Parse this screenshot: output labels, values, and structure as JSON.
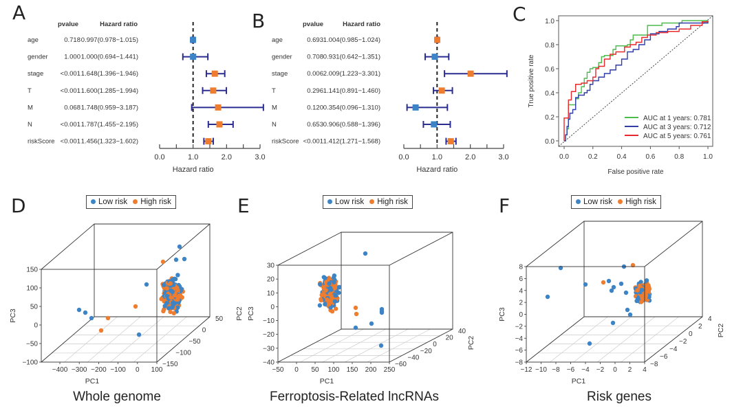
{
  "panels": {
    "A": {
      "letter": "A"
    },
    "B": {
      "letter": "B"
    },
    "C": {
      "letter": "C"
    },
    "D": {
      "letter": "D",
      "subtitle": "Whole genome"
    },
    "E": {
      "letter": "E",
      "subtitle": "Ferroptosis-Related lncRNAs"
    },
    "F": {
      "letter": "F",
      "subtitle": "Risk genes"
    }
  },
  "legend": {
    "low": "Low risk",
    "high": "High risk"
  },
  "colors": {
    "low": "#3c84c6",
    "high": "#ee7d2f",
    "ci": "#2a2d8f",
    "auc1": "#4cbb4c",
    "auc3": "#2e3ba8",
    "auc5": "#e8282a"
  },
  "chart_data": [
    {
      "id": "A",
      "type": "forest",
      "headers": {
        "pvalue": "pvalue",
        "hr": "Hazard ratio"
      },
      "xlabel": "Hazard ratio",
      "xlim": [
        0,
        3
      ],
      "xticks": [
        "0.0",
        "1.0",
        "2.0",
        "3.0"
      ],
      "reference_line": 1,
      "rows": [
        {
          "label": "age",
          "pvalue": "0.718",
          "hr_text": "0.997(0.978−1.015)",
          "hr": 0.997,
          "lo": 0.978,
          "hi": 1.015
        },
        {
          "label": "gender",
          "pvalue": "1.000",
          "hr_text": "1.000(0.694−1.441)",
          "hr": 1.0,
          "lo": 0.694,
          "hi": 1.441
        },
        {
          "label": "stage",
          "pvalue": "<0.001",
          "hr_text": "1.648(1.396−1.946)",
          "hr": 1.648,
          "lo": 1.396,
          "hi": 1.946
        },
        {
          "label": "T",
          "pvalue": "<0.001",
          "hr_text": "1.600(1.285−1.994)",
          "hr": 1.6,
          "lo": 1.285,
          "hi": 1.994
        },
        {
          "label": "M",
          "pvalue": "0.068",
          "hr_text": "1.748(0.959−3.187)",
          "hr": 1.748,
          "lo": 0.959,
          "hi": 3.187
        },
        {
          "label": "N",
          "pvalue": "<0.001",
          "hr_text": "1.787(1.455−2.195)",
          "hr": 1.787,
          "lo": 1.455,
          "hi": 2.195
        },
        {
          "label": "riskScore",
          "pvalue": "<0.001",
          "hr_text": "1.456(1.323−1.602)",
          "hr": 1.456,
          "lo": 1.323,
          "hi": 1.602
        }
      ]
    },
    {
      "id": "B",
      "type": "forest",
      "headers": {
        "pvalue": "pvalue",
        "hr": "Hazard ratio"
      },
      "xlabel": "Hazard ratio",
      "xlim": [
        0,
        3
      ],
      "xticks": [
        "0.0",
        "1.0",
        "2.0",
        "3.0"
      ],
      "reference_line": 1,
      "rows": [
        {
          "label": "age",
          "pvalue": "0.693",
          "hr_text": "1.004(0.985−1.024)",
          "hr": 1.004,
          "lo": 0.985,
          "hi": 1.024
        },
        {
          "label": "gender",
          "pvalue": "0.708",
          "hr_text": "0.931(0.642−1.351)",
          "hr": 0.931,
          "lo": 0.642,
          "hi": 1.351
        },
        {
          "label": "stage",
          "pvalue": "0.006",
          "hr_text": "2.009(1.223−3.301)",
          "hr": 2.009,
          "lo": 1.223,
          "hi": 3.301
        },
        {
          "label": "T",
          "pvalue": "0.296",
          "hr_text": "1.141(0.891−1.460)",
          "hr": 1.141,
          "lo": 0.891,
          "hi": 1.46
        },
        {
          "label": "M",
          "pvalue": "0.120",
          "hr_text": "0.354(0.096−1.310)",
          "hr": 0.354,
          "lo": 0.096,
          "hi": 1.31
        },
        {
          "label": "N",
          "pvalue": "0.653",
          "hr_text": "0.906(0.588−1.396)",
          "hr": 0.906,
          "lo": 0.588,
          "hi": 1.396
        },
        {
          "label": "riskScore",
          "pvalue": "<0.001",
          "hr_text": "1.412(1.271−1.568)",
          "hr": 1.412,
          "lo": 1.271,
          "hi": 1.568
        }
      ]
    },
    {
      "id": "C",
      "type": "line",
      "xlabel": "False positive rate",
      "ylabel": "True positive rate",
      "xlim": [
        0,
        1
      ],
      "ylim": [
        0,
        1
      ],
      "xticks": [
        "0.0",
        "0.2",
        "0.4",
        "0.6",
        "0.8",
        "1.0"
      ],
      "yticks": [
        "0.0",
        "0.2",
        "0.4",
        "0.6",
        "0.8",
        "1.0"
      ],
      "legend_position": "bottom-right",
      "series": [
        {
          "name": "AUC at 1 years: 0.781",
          "color_key": "auc1",
          "x": [
            0,
            0.01,
            0.02,
            0.03,
            0.03,
            0.08,
            0.08,
            0.1,
            0.12,
            0.14,
            0.16,
            0.18,
            0.2,
            0.24,
            0.26,
            0.28,
            0.34,
            0.36,
            0.38,
            0.44,
            0.46,
            0.48,
            0.56,
            0.58,
            0.68,
            0.82,
            0.95,
            1.0
          ],
          "y": [
            0,
            0.05,
            0.1,
            0.2,
            0.3,
            0.3,
            0.35,
            0.4,
            0.45,
            0.52,
            0.57,
            0.6,
            0.61,
            0.65,
            0.7,
            0.71,
            0.76,
            0.79,
            0.79,
            0.8,
            0.84,
            0.88,
            0.88,
            0.96,
            0.98,
            1.0,
            1.0,
            1.0
          ]
        },
        {
          "name": "AUC at 3 years: 0.712",
          "color_key": "auc3",
          "x": [
            0,
            0.01,
            0.02,
            0.03,
            0.04,
            0.06,
            0.08,
            0.1,
            0.14,
            0.16,
            0.18,
            0.2,
            0.24,
            0.28,
            0.32,
            0.36,
            0.4,
            0.44,
            0.48,
            0.52,
            0.56,
            0.6,
            0.66,
            0.72,
            0.78,
            0.8,
            0.9,
            0.97,
            1.0
          ],
          "y": [
            0,
            0.05,
            0.12,
            0.18,
            0.23,
            0.26,
            0.36,
            0.38,
            0.4,
            0.42,
            0.47,
            0.5,
            0.53,
            0.56,
            0.59,
            0.63,
            0.68,
            0.74,
            0.76,
            0.8,
            0.84,
            0.89,
            0.91,
            0.93,
            0.95,
            0.98,
            0.98,
            0.98,
            1.0
          ]
        },
        {
          "name": "AUC at 5 years: 0.761",
          "color_key": "auc5",
          "x": [
            0,
            0.0,
            0.03,
            0.03,
            0.05,
            0.05,
            0.08,
            0.08,
            0.12,
            0.16,
            0.2,
            0.22,
            0.24,
            0.28,
            0.32,
            0.36,
            0.42,
            0.46,
            0.5,
            0.54,
            0.58,
            0.64,
            0.72,
            0.8,
            0.88,
            0.96,
            1.0
          ],
          "y": [
            0,
            0.19,
            0.19,
            0.34,
            0.35,
            0.41,
            0.42,
            0.47,
            0.48,
            0.5,
            0.53,
            0.6,
            0.62,
            0.68,
            0.72,
            0.74,
            0.78,
            0.8,
            0.82,
            0.86,
            0.88,
            0.9,
            0.91,
            0.93,
            0.96,
            0.99,
            1.0
          ]
        }
      ],
      "diagonal": true
    },
    {
      "id": "D",
      "type": "scatter",
      "dimension": "3d",
      "title": "Whole genome",
      "xlabel": "PC1",
      "ylabel": "PC3",
      "zlabel": "",
      "xticks": [
        "-400",
        "-300",
        "-200",
        "-100",
        "0",
        "100"
      ],
      "yticks": [
        "150",
        "100",
        "50",
        "0",
        "-50",
        "-100"
      ],
      "depth_ticks": [
        "50",
        "0",
        "-50",
        "-100",
        "-150"
      ],
      "legend_position": "top-center"
    },
    {
      "id": "E",
      "type": "scatter",
      "dimension": "3d",
      "title": "Ferroptosis-Related lncRNAs",
      "xlabel": "PC1",
      "ylabel": "PC3",
      "ylabel2": "PC2",
      "zlabel": "PC2",
      "xticks": [
        "-50",
        "0",
        "50",
        "100",
        "150",
        "200",
        "250"
      ],
      "yticks": [
        "30",
        "20",
        "10",
        "0",
        "-10",
        "-20",
        "-30",
        "-40"
      ],
      "depth_ticks": [
        "40",
        "20",
        "0",
        "-20",
        "-40",
        "-60"
      ],
      "legend_position": "top-center"
    },
    {
      "id": "F",
      "type": "scatter",
      "dimension": "3d",
      "title": "Risk genes",
      "xlabel": "PC1",
      "ylabel": "PC3",
      "zlabel": "PC2",
      "xticks": [
        "-12",
        "-10",
        "-8",
        "-6",
        "-4",
        "-2",
        "0",
        "2",
        "4"
      ],
      "yticks": [
        "8",
        "6",
        "4",
        "2",
        "0",
        "-2",
        "-4",
        "-6",
        "-8"
      ],
      "depth_ticks": [
        "4",
        "2",
        "0",
        "-2",
        "-4",
        "-6",
        "-8"
      ],
      "legend_position": "top-center"
    }
  ]
}
